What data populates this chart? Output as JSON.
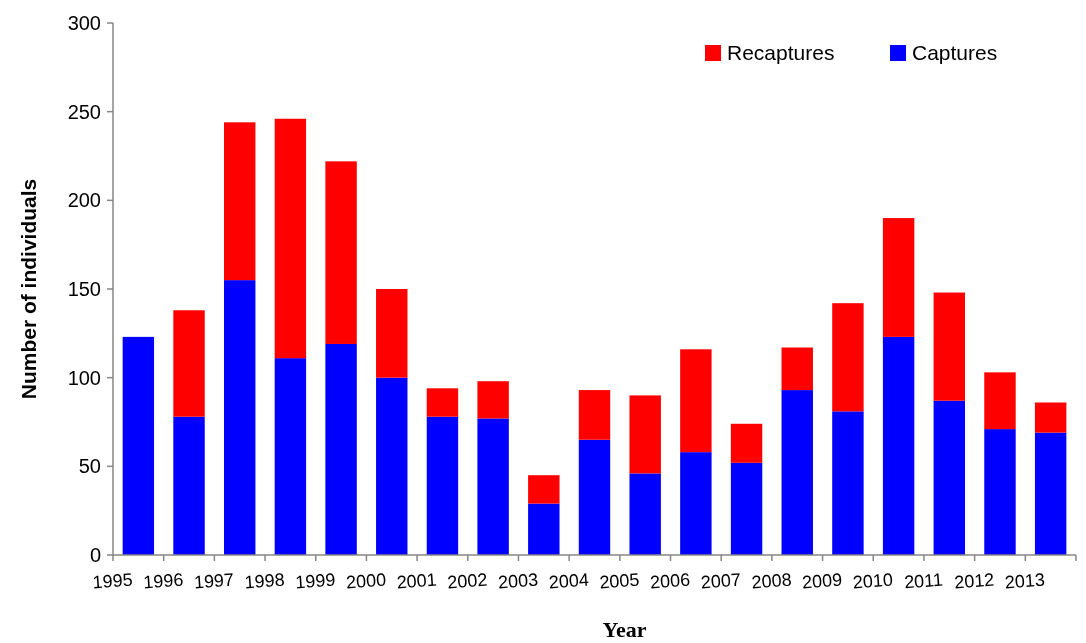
{
  "chart_data": {
    "type": "bar",
    "stacked": true,
    "xlabel": "Year",
    "ylabel": "Number of individuals",
    "categories": [
      "1995",
      "1996",
      "1997",
      "1998",
      "1999",
      "2000",
      "2001",
      "2002",
      "2003",
      "2004",
      "2005",
      "2006",
      "2007",
      "2008",
      "2009",
      "2010",
      "2011",
      "2012",
      "2013"
    ],
    "series": [
      {
        "name": "Captures",
        "color": "#0000ff",
        "values": [
          123,
          78,
          155,
          111,
          119,
          100,
          78,
          77,
          29,
          65,
          46,
          58,
          52,
          93,
          81,
          123,
          87,
          71,
          69
        ]
      },
      {
        "name": "Recaptures",
        "color": "#ff0000",
        "values": [
          0,
          60,
          89,
          135,
          103,
          50,
          16,
          21,
          16,
          28,
          44,
          58,
          22,
          24,
          61,
          67,
          61,
          32,
          17
        ]
      }
    ],
    "ylim": [
      0,
      300
    ],
    "yticks": [
      0,
      50,
      100,
      150,
      200,
      250,
      300
    ],
    "grid": false,
    "legend": "top right"
  }
}
